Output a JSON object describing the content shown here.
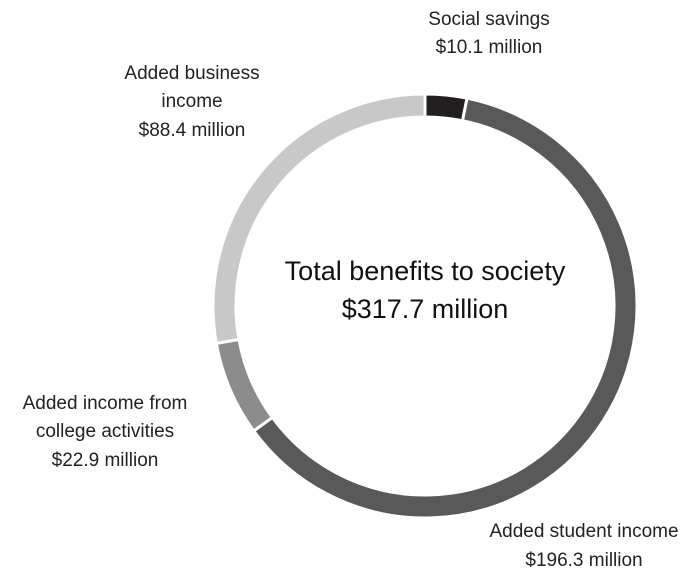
{
  "chart_data": {
    "type": "pie",
    "variant": "donut",
    "center_label": {
      "line1": "Total benefits to society",
      "line2": "$317.7 million"
    },
    "unit": "million",
    "series": [
      {
        "name": "Social savings",
        "value": 10.1,
        "value_label": "$10.1 million",
        "color": "#231f20",
        "label_lines": [
          "Social savings",
          "$10.1 million"
        ]
      },
      {
        "name": "Added student income",
        "value": 196.3,
        "value_label": "$196.3 million",
        "color": "#595959",
        "label_lines": [
          "Added student income",
          "$196.3 million"
        ]
      },
      {
        "name": "Added income from college activities",
        "value": 22.9,
        "value_label": "$22.9 million",
        "color": "#8c8c8c",
        "label_lines": [
          "Added income from",
          "college activities",
          "$22.9 million"
        ]
      },
      {
        "name": "Added business income",
        "value": 88.4,
        "value_label": "$88.4 million",
        "color": "#c8c8c8",
        "label_lines": [
          "Added business",
          "income",
          "$88.4 million"
        ]
      }
    ],
    "total": 317.7,
    "legend": "none"
  }
}
